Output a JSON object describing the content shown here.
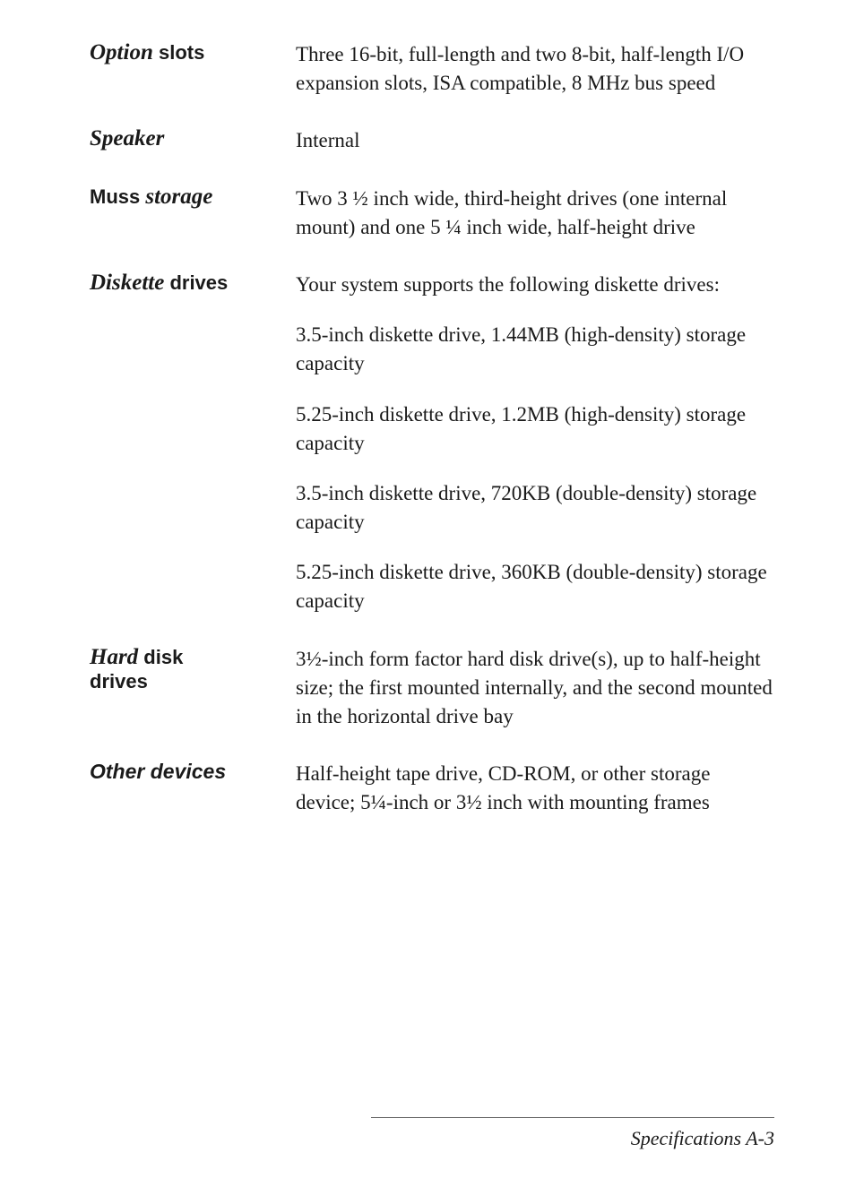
{
  "specs": [
    {
      "label_italic": "Option",
      "label_sans": " slots",
      "paragraphs": [
        "Three 16-bit, full-length and two 8-bit, half-length I/O expansion slots, ISA compatible, 8 MHz bus speed"
      ]
    },
    {
      "label_italic": "Speaker",
      "label_sans": "",
      "paragraphs": [
        "Internal"
      ]
    },
    {
      "label_italic": "",
      "label_sans_pre": "Muss ",
      "label_italic_mid": "storage",
      "paragraphs": [
        "Two 3 ½ inch wide, third-height drives (one internal mount) and one 5 ¼ inch wide, half-height drive"
      ]
    },
    {
      "label_italic": "Diskette",
      "label_sans": " drives",
      "paragraphs": [
        "Your system supports the following diskette  drives:",
        "3.5-inch diskette drive, 1.44MB (high-density)  storage  capacity",
        "5.25-inch diskette drive, 1.2MB (high-density) storage capacity",
        "3.5-inch diskette drive, 720KB (double-density) storage capacity",
        "5.25-inch diskette drive, 360KB (double-density) storage capacity"
      ]
    },
    {
      "label_italic": "Hard",
      "label_sans": " disk",
      "label_sans_line2": "drives",
      "paragraphs": [
        "3½-inch form factor hard disk drive(s), up to half-height size; the first mounted internally, and the second mounted in the horizontal drive bay"
      ]
    },
    {
      "label_sans_bold_italic": "Other devices",
      "paragraphs": [
        "Half-height tape drive, CD-ROM, or other storage device; 5¼-inch or 3½ inch with mounting frames"
      ]
    }
  ],
  "footer": "Specifications   A-3"
}
